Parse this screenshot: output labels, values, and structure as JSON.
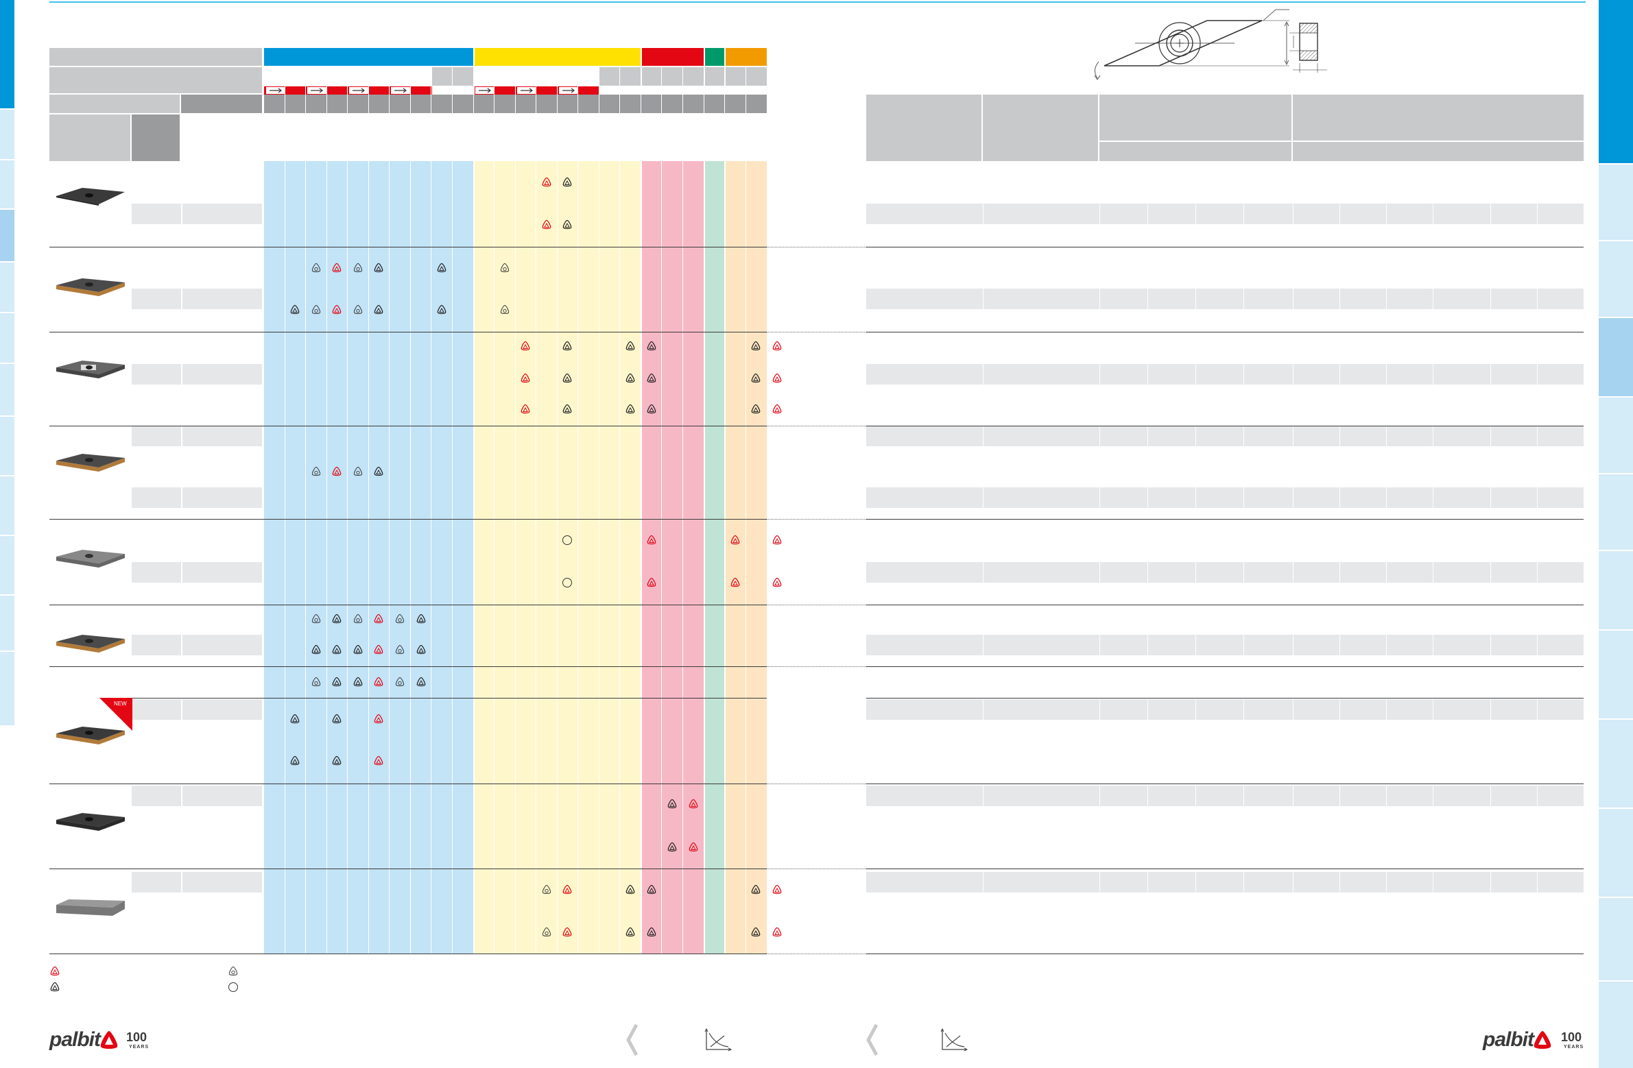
{
  "badges": {
    "new_label": "NEW"
  },
  "logo": {
    "brand": "palbit",
    "anniversary": "100",
    "years_label": "YEARS"
  },
  "colors": {
    "blue_primary": "#0097d9",
    "blue_light": "#c3e3f6",
    "tab_light": "#d4ebf8",
    "tab_active": "#a6d3ef",
    "yellow_header": "#ffe100",
    "yellow_light": "#fff7cc",
    "red_header": "#e30613",
    "red_light": "#f7b8c6",
    "green_header": "#009a6a",
    "green_light": "#bfe3d5",
    "orange_header": "#f29b00",
    "orange_light": "#fde5c2",
    "gray_header": "#c8c9cb",
    "gray_dark": "#9a9b9d"
  },
  "icons": {
    "insert_marker_red": "insert-marker-red-icon",
    "insert_marker_black": "insert-marker-black-icon",
    "insert_marker_outline": "insert-marker-outline-icon",
    "circle_marker": "circle-marker-icon",
    "arrow_right": "arrow-right-icon",
    "page_prev_left": "page-prev-left-icon",
    "page_prev_right": "page-prev-right-icon",
    "cutting_graph_left": "cutting-graph-left-icon",
    "cutting_graph_right": "cutting-graph-right-icon",
    "insert_diagram": "insert-geometry-diagram-icon"
  }
}
